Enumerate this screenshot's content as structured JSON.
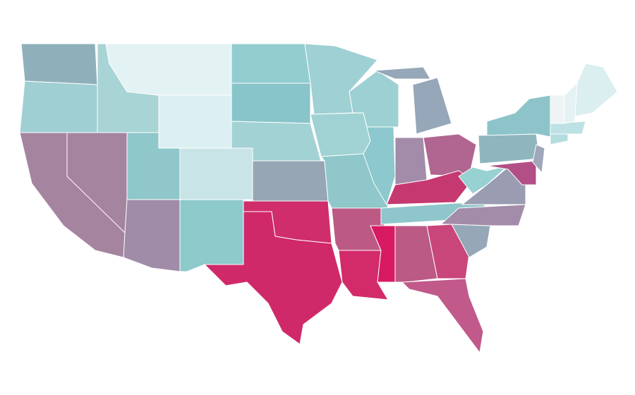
{
  "map": {
    "regions": [
      {
        "color": "#8fb0ba"
      },
      {
        "color": "#9fcfd3"
      },
      {
        "color": "#a5849f"
      },
      {
        "color": "#a5849f"
      },
      {
        "color": "#a8d4d6"
      },
      {
        "color": "#e3f2f3"
      },
      {
        "color": "#dceff2"
      },
      {
        "color": "#8fc7cb"
      },
      {
        "color": "#c8e4e7"
      },
      {
        "color": "#a08ca8"
      },
      {
        "color": "#8ec9cc"
      },
      {
        "color": "#93cdd0"
      },
      {
        "color": "#88c5ca"
      },
      {
        "color": "#a3d2d5"
      },
      {
        "color": "#96a6b5"
      },
      {
        "color": "#cf2d6b"
      },
      {
        "color": "#d0296a"
      },
      {
        "color": "#9fd0d3"
      },
      {
        "color": "#a0d2d4"
      },
      {
        "color": "#8fc7ca"
      },
      {
        "color": "#bc5a85"
      },
      {
        "color": "#d32b69"
      },
      {
        "color": "#9dd0d2"
      },
      {
        "color": "#8cc8cd"
      },
      {
        "color": "#95a7b8"
      },
      {
        "color": "#a28ca9"
      },
      {
        "color": "#b06690"
      },
      {
        "color": "#c63870"
      },
      {
        "color": "#8fc6cc"
      },
      {
        "color": "#d81a63"
      },
      {
        "color": "#bb5a84"
      },
      {
        "color": "#c9467a"
      },
      {
        "color": "#c1598a"
      },
      {
        "color": "#96a8b7"
      },
      {
        "color": "#a38ca9"
      },
      {
        "color": "#9a9cb1"
      },
      {
        "color": "#97d1d2"
      },
      {
        "color": "#8fb6be"
      },
      {
        "color": "#8dc4ca"
      },
      {
        "color": "#b24f86"
      },
      {
        "color": "#9ea7bb"
      },
      {
        "color": "#b4dde0"
      },
      {
        "color": "#bee1e3"
      },
      {
        "color": "#eef3f4"
      },
      {
        "color": "#e5f2f3"
      },
      {
        "color": "#dbeef0"
      }
    ]
  }
}
